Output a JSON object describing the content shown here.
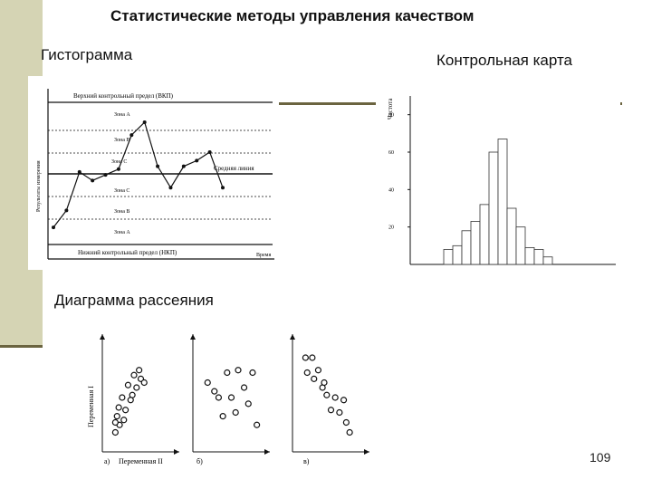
{
  "slide": {
    "title": "Статистические методы управления качеством",
    "label_left": "Гистограмма",
    "label_right": "Контрольная карта",
    "label_bottom": "Диаграмма рассеяния",
    "page_number": "109",
    "colors": {
      "accent_bar": "#d5d4b4",
      "rule": "#6b6440"
    }
  },
  "control_chart": {
    "ucl_label": "Верхний контрольный предел (ВКП)",
    "lcl_label": "Нижний контрольный предел (НКП)",
    "center_label": "Средняя линия",
    "y_axis_label": "Результаты измерения",
    "x_axis_label": "Время",
    "zone_labels": [
      "Зона A",
      "Зона B",
      "Зона C",
      "Зона C",
      "Зона B",
      "Зона A"
    ],
    "points": [
      1.2,
      2.4,
      5.1,
      4.5,
      4.9,
      5.3,
      7.7,
      8.6,
      5.5,
      4.0,
      5.5,
      5.9,
      6.5,
      4.0
    ]
  },
  "chart_data": {
    "type": "bar",
    "y_axis_label": "Частота",
    "y_ticks": [
      20,
      40,
      60,
      80
    ],
    "ylim": [
      0,
      90
    ],
    "values": [
      8,
      10,
      18,
      23,
      32,
      60,
      67,
      30,
      20,
      9,
      8,
      4
    ]
  },
  "scatter": {
    "y_axis_label": "Переменная I",
    "x_axis_label": "Переменная II",
    "panel_labels": [
      "а)",
      "б)",
      "в)"
    ],
    "panels": [
      {
        "points": [
          [
            10,
            12
          ],
          [
            15,
            18
          ],
          [
            12,
            25
          ],
          [
            20,
            22
          ],
          [
            14,
            32
          ],
          [
            22,
            30
          ],
          [
            30,
            42
          ],
          [
            25,
            50
          ],
          [
            35,
            48
          ],
          [
            32,
            58
          ],
          [
            40,
            55
          ],
          [
            38,
            62
          ],
          [
            44,
            52
          ],
          [
            18,
            40
          ],
          [
            10,
            20
          ],
          [
            28,
            38
          ]
        ]
      },
      {
        "points": [
          [
            12,
            52
          ],
          [
            20,
            45
          ],
          [
            35,
            60
          ],
          [
            48,
            62
          ],
          [
            55,
            48
          ],
          [
            65,
            60
          ],
          [
            30,
            25
          ],
          [
            45,
            28
          ],
          [
            60,
            35
          ],
          [
            70,
            18
          ],
          [
            25,
            40
          ],
          [
            40,
            40
          ]
        ]
      },
      {
        "points": [
          [
            10,
            72
          ],
          [
            18,
            72
          ],
          [
            12,
            60
          ],
          [
            20,
            55
          ],
          [
            25,
            62
          ],
          [
            30,
            48
          ],
          [
            35,
            42
          ],
          [
            45,
            40
          ],
          [
            50,
            28
          ],
          [
            40,
            30
          ],
          [
            58,
            20
          ],
          [
            62,
            12
          ],
          [
            55,
            38
          ],
          [
            32,
            52
          ]
        ]
      }
    ]
  }
}
